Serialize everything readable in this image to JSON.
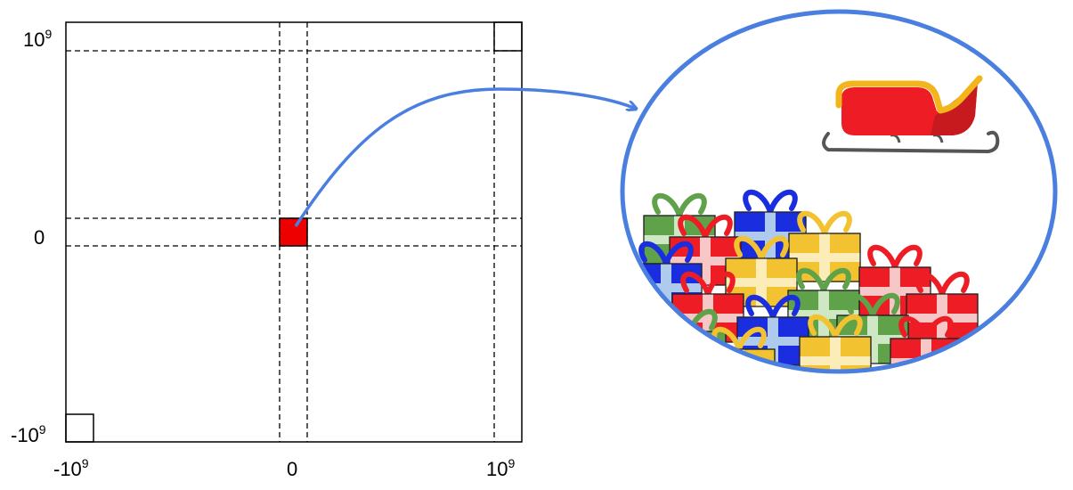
{
  "axes": {
    "y_labels": [
      {
        "base": "10",
        "exp": "9"
      },
      {
        "base": "0",
        "exp": ""
      },
      {
        "base": "-10",
        "exp": "9"
      }
    ],
    "x_labels": [
      {
        "base": "-10",
        "exp": "9"
      },
      {
        "base": "0",
        "exp": ""
      },
      {
        "base": "10",
        "exp": "9"
      }
    ]
  },
  "colors": {
    "center_cell": "#ee0000",
    "arrow": "#4a7fe0",
    "lens_border": "#4a7fe0",
    "sleigh_body": "#ee1c25",
    "sleigh_trim": "#f2b51c",
    "sleigh_runner": "#555555"
  },
  "icons": {
    "sleigh": "sleigh-icon",
    "gifts": "gift-icon"
  }
}
